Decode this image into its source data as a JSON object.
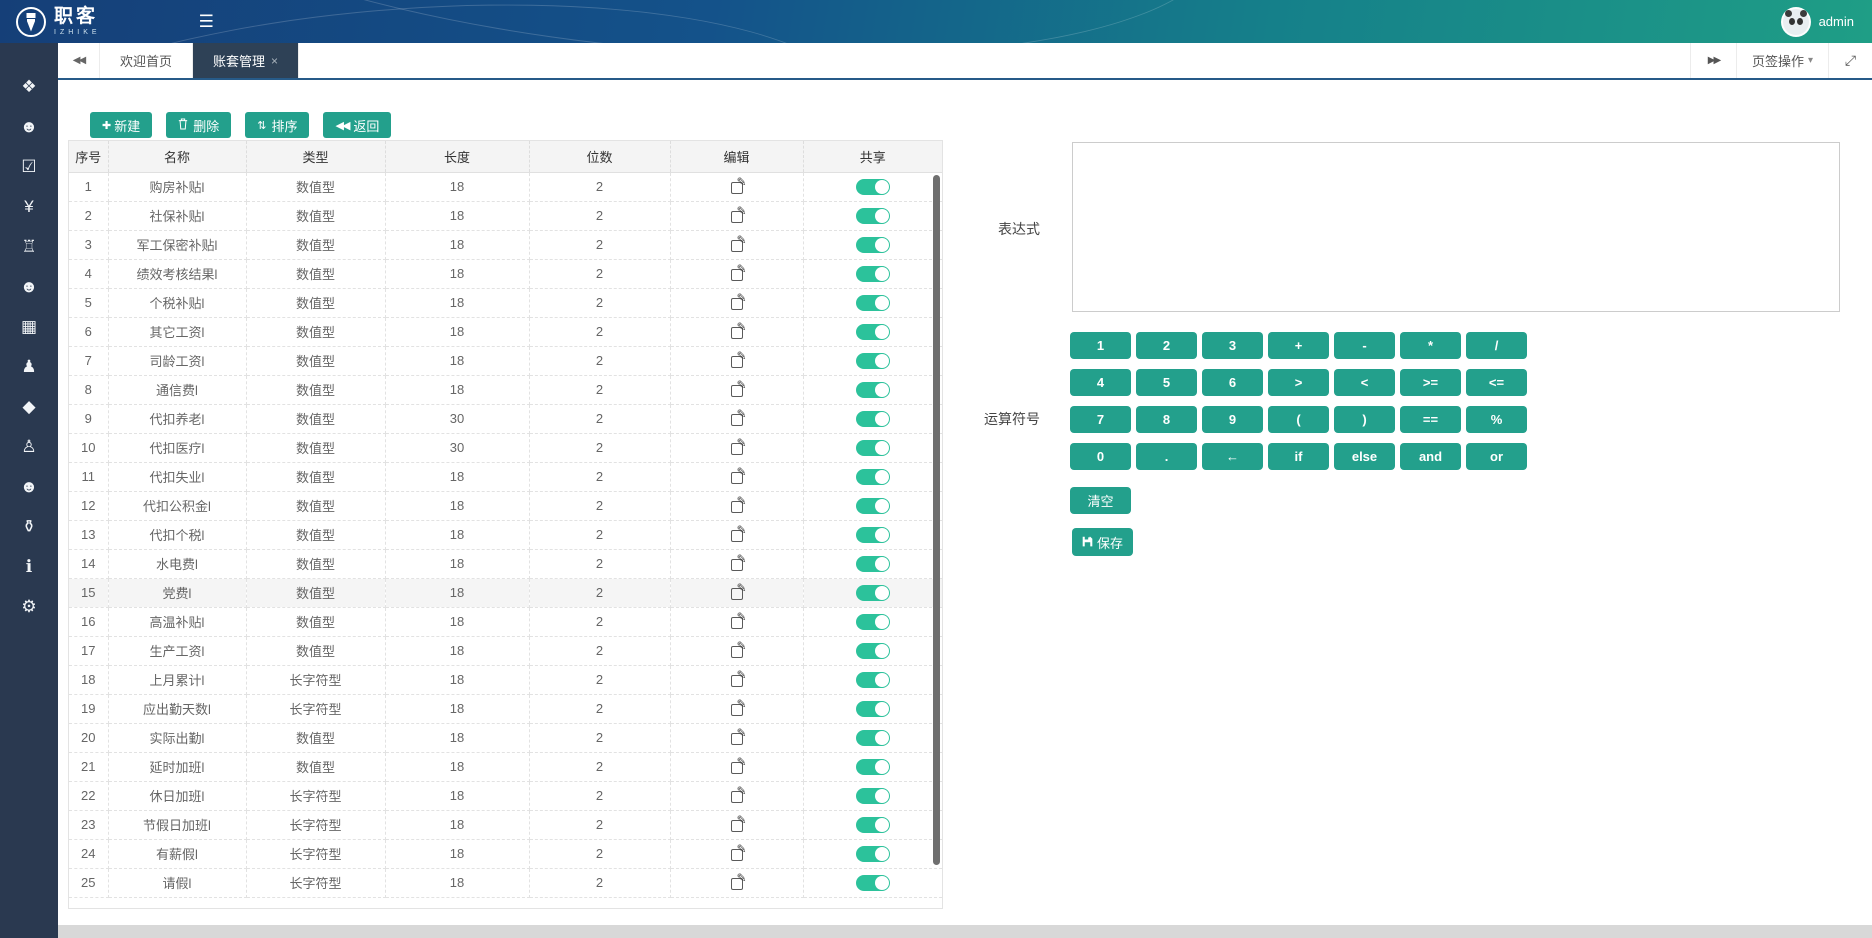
{
  "colors": {
    "accent_green": "#23a08c",
    "toggle_on": "#2cc29b",
    "topbar_blue": "#153f78",
    "topbar_teal": "#1f9e86",
    "sidebar_bg": "#2a3950",
    "active_tab_bg": "#2e4156"
  },
  "topbar": {
    "brand_cn": "职客",
    "brand_en": "IZHIKE",
    "username": "admin"
  },
  "sidebar": {
    "items": [
      {
        "icon": "cubes-icon"
      },
      {
        "icon": "users-group-icon"
      },
      {
        "icon": "check-square-icon"
      },
      {
        "icon": "yuan-icon"
      },
      {
        "icon": "bank-icon"
      },
      {
        "icon": "staff-group-icon"
      },
      {
        "icon": "briefcase-icon"
      },
      {
        "icon": "street-view-icon"
      },
      {
        "icon": "graduation-cap-icon"
      },
      {
        "icon": "child-icon"
      },
      {
        "icon": "user-icon"
      },
      {
        "icon": "trophy-icon"
      },
      {
        "icon": "info-icon"
      },
      {
        "icon": "gears-icon"
      }
    ]
  },
  "tabbar": {
    "tabs": [
      {
        "label": "欢迎首页"
      },
      {
        "label": "账套管理",
        "close": "×",
        "active": true
      }
    ],
    "menu_label": "页签操作"
  },
  "toolbar": {
    "buttons": [
      {
        "label": "新建",
        "icon": "plus-icon"
      },
      {
        "label": "删除",
        "icon": "trash-icon"
      },
      {
        "label": "排序",
        "icon": "sort-icon"
      },
      {
        "label": "返回",
        "icon": "backward-icon"
      }
    ]
  },
  "table": {
    "headers": [
      "序号",
      "名称",
      "类型",
      "长度",
      "位数",
      "编辑",
      "共享"
    ],
    "rows": [
      {
        "no": "1",
        "name": "购房补贴l",
        "type": "数值型",
        "length": "18",
        "digits": "2",
        "shared": true
      },
      {
        "no": "2",
        "name": "社保补贴l",
        "type": "数值型",
        "length": "18",
        "digits": "2",
        "shared": true
      },
      {
        "no": "3",
        "name": "军工保密补贴l",
        "type": "数值型",
        "length": "18",
        "digits": "2",
        "shared": true
      },
      {
        "no": "4",
        "name": "绩效考核结果l",
        "type": "数值型",
        "length": "18",
        "digits": "2",
        "shared": true
      },
      {
        "no": "5",
        "name": "个税补贴l",
        "type": "数值型",
        "length": "18",
        "digits": "2",
        "shared": true
      },
      {
        "no": "6",
        "name": "其它工资l",
        "type": "数值型",
        "length": "18",
        "digits": "2",
        "shared": true
      },
      {
        "no": "7",
        "name": "司龄工资l",
        "type": "数值型",
        "length": "18",
        "digits": "2",
        "shared": true
      },
      {
        "no": "8",
        "name": "通信费l",
        "type": "数值型",
        "length": "18",
        "digits": "2",
        "shared": true
      },
      {
        "no": "9",
        "name": "代扣养老l",
        "type": "数值型",
        "length": "30",
        "digits": "2",
        "shared": true
      },
      {
        "no": "10",
        "name": "代扣医疗l",
        "type": "数值型",
        "length": "30",
        "digits": "2",
        "shared": true
      },
      {
        "no": "11",
        "name": "代扣失业l",
        "type": "数值型",
        "length": "18",
        "digits": "2",
        "shared": true
      },
      {
        "no": "12",
        "name": "代扣公积金l",
        "type": "数值型",
        "length": "18",
        "digits": "2",
        "shared": true
      },
      {
        "no": "13",
        "name": "代扣个税l",
        "type": "数值型",
        "length": "18",
        "digits": "2",
        "shared": true
      },
      {
        "no": "14",
        "name": "水电费l",
        "type": "数值型",
        "length": "18",
        "digits": "2",
        "shared": true
      },
      {
        "no": "15",
        "name": "党费l",
        "type": "数值型",
        "length": "18",
        "digits": "2",
        "shared": true,
        "highlight": true
      },
      {
        "no": "16",
        "name": "高温补贴l",
        "type": "数值型",
        "length": "18",
        "digits": "2",
        "shared": true
      },
      {
        "no": "17",
        "name": "生产工资l",
        "type": "数值型",
        "length": "18",
        "digits": "2",
        "shared": true
      },
      {
        "no": "18",
        "name": "上月累计l",
        "type": "长字符型",
        "length": "18",
        "digits": "2",
        "shared": true
      },
      {
        "no": "19",
        "name": "应出勤天数l",
        "type": "长字符型",
        "length": "18",
        "digits": "2",
        "shared": true
      },
      {
        "no": "20",
        "name": "实际出勤l",
        "type": "数值型",
        "length": "18",
        "digits": "2",
        "shared": true
      },
      {
        "no": "21",
        "name": "延时加班l",
        "type": "数值型",
        "length": "18",
        "digits": "2",
        "shared": true
      },
      {
        "no": "22",
        "name": "休日加班l",
        "type": "长字符型",
        "length": "18",
        "digits": "2",
        "shared": true
      },
      {
        "no": "23",
        "name": "节假日加班l",
        "type": "长字符型",
        "length": "18",
        "digits": "2",
        "shared": true
      },
      {
        "no": "24",
        "name": "有薪假l",
        "type": "长字符型",
        "length": "18",
        "digits": "2",
        "shared": true
      },
      {
        "no": "25",
        "name": "请假l",
        "type": "长字符型",
        "length": "18",
        "digits": "2",
        "shared": true
      }
    ]
  },
  "expression": {
    "label": "表达式",
    "value": ""
  },
  "operators": {
    "label": "运算符号",
    "rows": [
      [
        "1",
        "2",
        "3",
        "+",
        "-",
        "*",
        "/"
      ],
      [
        "4",
        "5",
        "6",
        ">",
        "<",
        ">=",
        "<="
      ],
      [
        "7",
        "8",
        "9",
        "(",
        ")",
        "==",
        "%"
      ],
      [
        "0",
        ".",
        "←",
        "if",
        "else",
        "and",
        "or"
      ]
    ],
    "clear_label": "清空",
    "save_label": "保存"
  }
}
